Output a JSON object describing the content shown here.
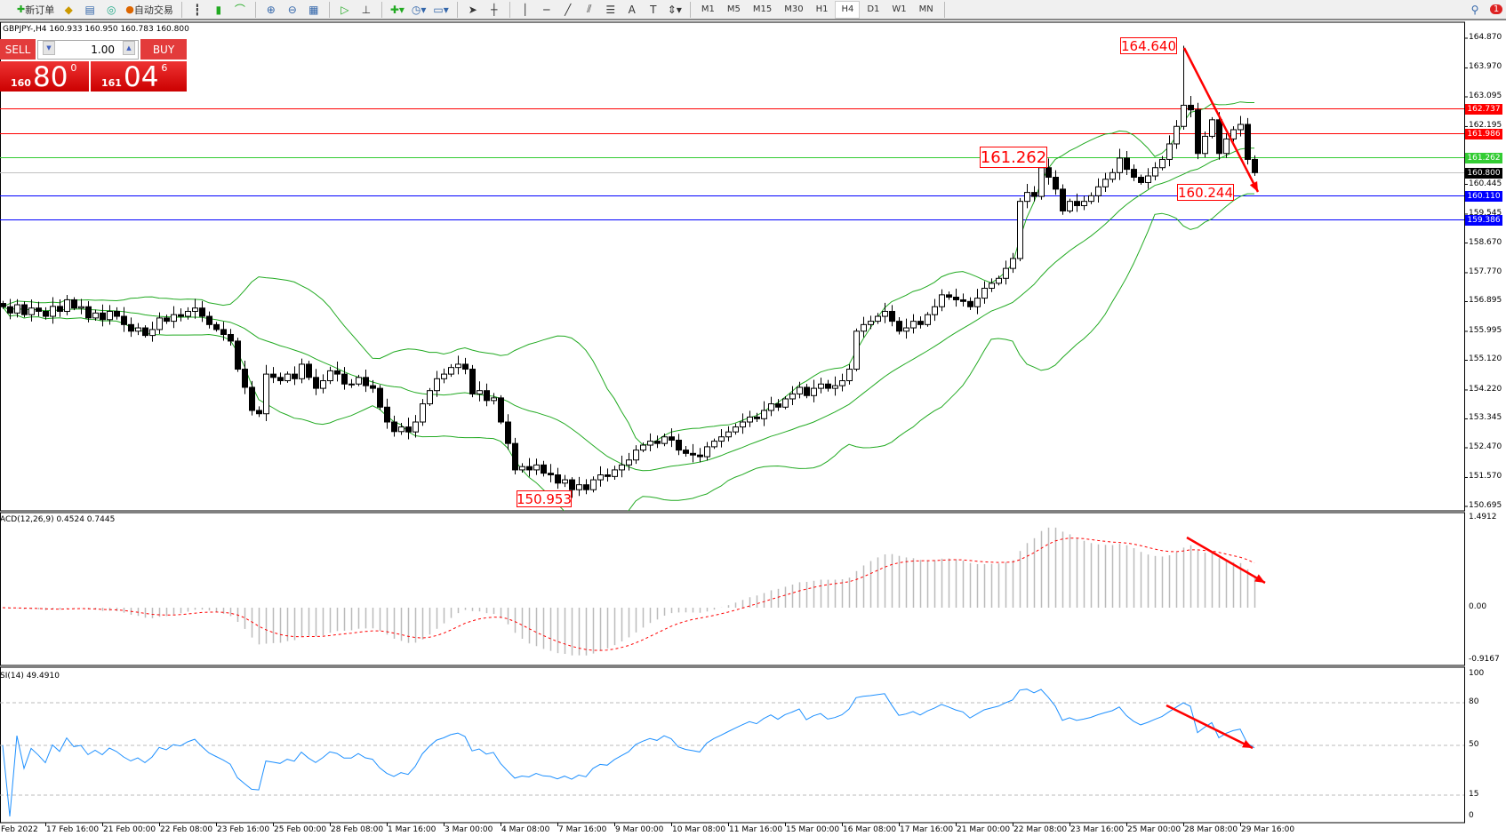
{
  "toolbar": {
    "new_order": "新订单",
    "auto_trading": "自动交易",
    "timeframes": [
      "M1",
      "M5",
      "M15",
      "M30",
      "H1",
      "H4",
      "D1",
      "W1",
      "MN"
    ],
    "active_timeframe": "H4",
    "text_tool": "A",
    "notifications_count": "1"
  },
  "header": {
    "ohlc": "GBPJPY-,H4  160.933 160.950 160.783 160.800"
  },
  "trade_panel": {
    "sell_label": "SELL",
    "buy_label": "BUY",
    "lot": "1.00",
    "sell_small": "160",
    "sell_big": "80",
    "sell_pip": "0",
    "buy_small": "161",
    "buy_big": "04",
    "buy_pip": "6"
  },
  "indicators": {
    "macd_label": "ACD(12,26,9) 0.4524 0.7445",
    "rsi_label": "SI(14) 49.4910"
  },
  "colors": {
    "up_candle": "#ffffff",
    "down_candle": "#000000",
    "bands": "#22aa22",
    "macd_hist": "#bbbbbb",
    "macd_signal": "#ff0000",
    "rsi": "#1e90ff",
    "arrow": "#ff0000"
  },
  "chart_data": {
    "type": "candlestick",
    "symbol": "GBPJPY-",
    "timeframe": "H4",
    "ylim": [
      150.695,
      164.87
    ],
    "y_ticks": [
      "164.870",
      "163.970",
      "163.095",
      "162.195",
      "160.445",
      "159.545",
      "158.670",
      "157.770",
      "156.895",
      "155.995",
      "155.120",
      "154.220",
      "153.345",
      "152.470",
      "151.570",
      "150.695"
    ],
    "x_ticks": [
      "Feb 2022",
      "17 Feb 16:00",
      "21 Feb 00:00",
      "22 Feb 08:00",
      "23 Feb 16:00",
      "25 Feb 00:00",
      "28 Feb 08:00",
      "1 Mar 16:00",
      "3 Mar 00:00",
      "4 Mar 08:00",
      "7 Mar 16:00",
      "9 Mar 00:00",
      "10 Mar 08:00",
      "11 Mar 16:00",
      "15 Mar 00:00",
      "16 Mar 08:00",
      "17 Mar 16:00",
      "21 Mar 00:00",
      "22 Mar 08:00",
      "23 Mar 16:00",
      "25 Mar 00:00",
      "28 Mar 08:00",
      "29 Mar 16:00"
    ],
    "closes": [
      156.74,
      156.55,
      156.8,
      156.5,
      156.7,
      156.6,
      156.45,
      156.75,
      156.6,
      156.95,
      156.7,
      156.74,
      156.4,
      156.55,
      156.35,
      156.6,
      156.45,
      156.2,
      156.0,
      156.1,
      155.87,
      156.05,
      156.4,
      156.3,
      156.5,
      156.45,
      156.6,
      156.7,
      156.45,
      156.2,
      156.05,
      155.9,
      155.7,
      154.85,
      154.3,
      153.6,
      153.5,
      154.7,
      154.6,
      154.5,
      154.7,
      154.56,
      155.0,
      154.6,
      154.27,
      154.5,
      154.8,
      154.7,
      154.4,
      154.4,
      154.6,
      154.35,
      154.27,
      153.7,
      153.25,
      152.96,
      153.1,
      152.95,
      153.25,
      153.8,
      154.2,
      154.56,
      154.7,
      154.9,
      155.0,
      154.85,
      154.1,
      154.2,
      153.9,
      153.98,
      153.25,
      152.6,
      151.8,
      151.9,
      151.8,
      151.95,
      151.7,
      151.65,
      151.4,
      151.5,
      151.2,
      151.35,
      151.2,
      151.5,
      151.65,
      151.6,
      151.8,
      151.95,
      152.1,
      152.4,
      152.55,
      152.67,
      152.6,
      152.8,
      152.7,
      152.4,
      152.3,
      152.25,
      152.2,
      152.5,
      152.67,
      152.8,
      152.95,
      153.1,
      153.25,
      153.4,
      153.35,
      153.6,
      153.8,
      153.7,
      153.95,
      154.1,
      154.3,
      154.05,
      154.27,
      154.4,
      154.27,
      154.35,
      154.5,
      154.85,
      156.0,
      156.2,
      156.3,
      156.45,
      156.6,
      156.3,
      156.0,
      156.1,
      156.3,
      156.2,
      156.5,
      156.74,
      157.1,
      157.03,
      156.95,
      156.9,
      156.74,
      157.0,
      157.3,
      157.45,
      157.6,
      157.9,
      158.2,
      159.93,
      160.2,
      160.08,
      160.95,
      160.66,
      160.3,
      159.64,
      159.93,
      159.8,
      159.93,
      160.1,
      160.37,
      160.6,
      160.8,
      161.24,
      160.9,
      160.66,
      160.5,
      160.7,
      160.95,
      161.2,
      161.67,
      162.2,
      162.84,
      162.7,
      161.38,
      161.9,
      162.4,
      161.38,
      161.82,
      162.1,
      162.26,
      161.2,
      160.8
    ],
    "levels": [
      {
        "value": "162.737",
        "color": "#ff0000"
      },
      {
        "value": "161.986",
        "color": "#ff0000"
      },
      {
        "value": "161.262",
        "color": "#33cc33"
      },
      {
        "value": "160.800",
        "color": "#000000",
        "line": "#c0c0c0"
      },
      {
        "value": "160.110",
        "color": "#0000ff"
      },
      {
        "value": "159.386",
        "color": "#0000ff"
      }
    ],
    "annotations": {
      "high": "164.640",
      "resistance": "161.262",
      "support": "160.244",
      "low": "150.953"
    },
    "bollinger": {
      "period": 20,
      "deviation": 2
    },
    "macd": {
      "fast": 12,
      "slow": 26,
      "signal": 9,
      "ticks": [
        "1.4912",
        "0.00",
        "-0.9167"
      ],
      "ylim": [
        -0.9167,
        1.4912
      ]
    },
    "rsi": {
      "period": 14,
      "ticks": [
        "100",
        "80",
        "50",
        "15",
        "0"
      ],
      "levels": [
        80,
        50,
        15
      ]
    }
  }
}
